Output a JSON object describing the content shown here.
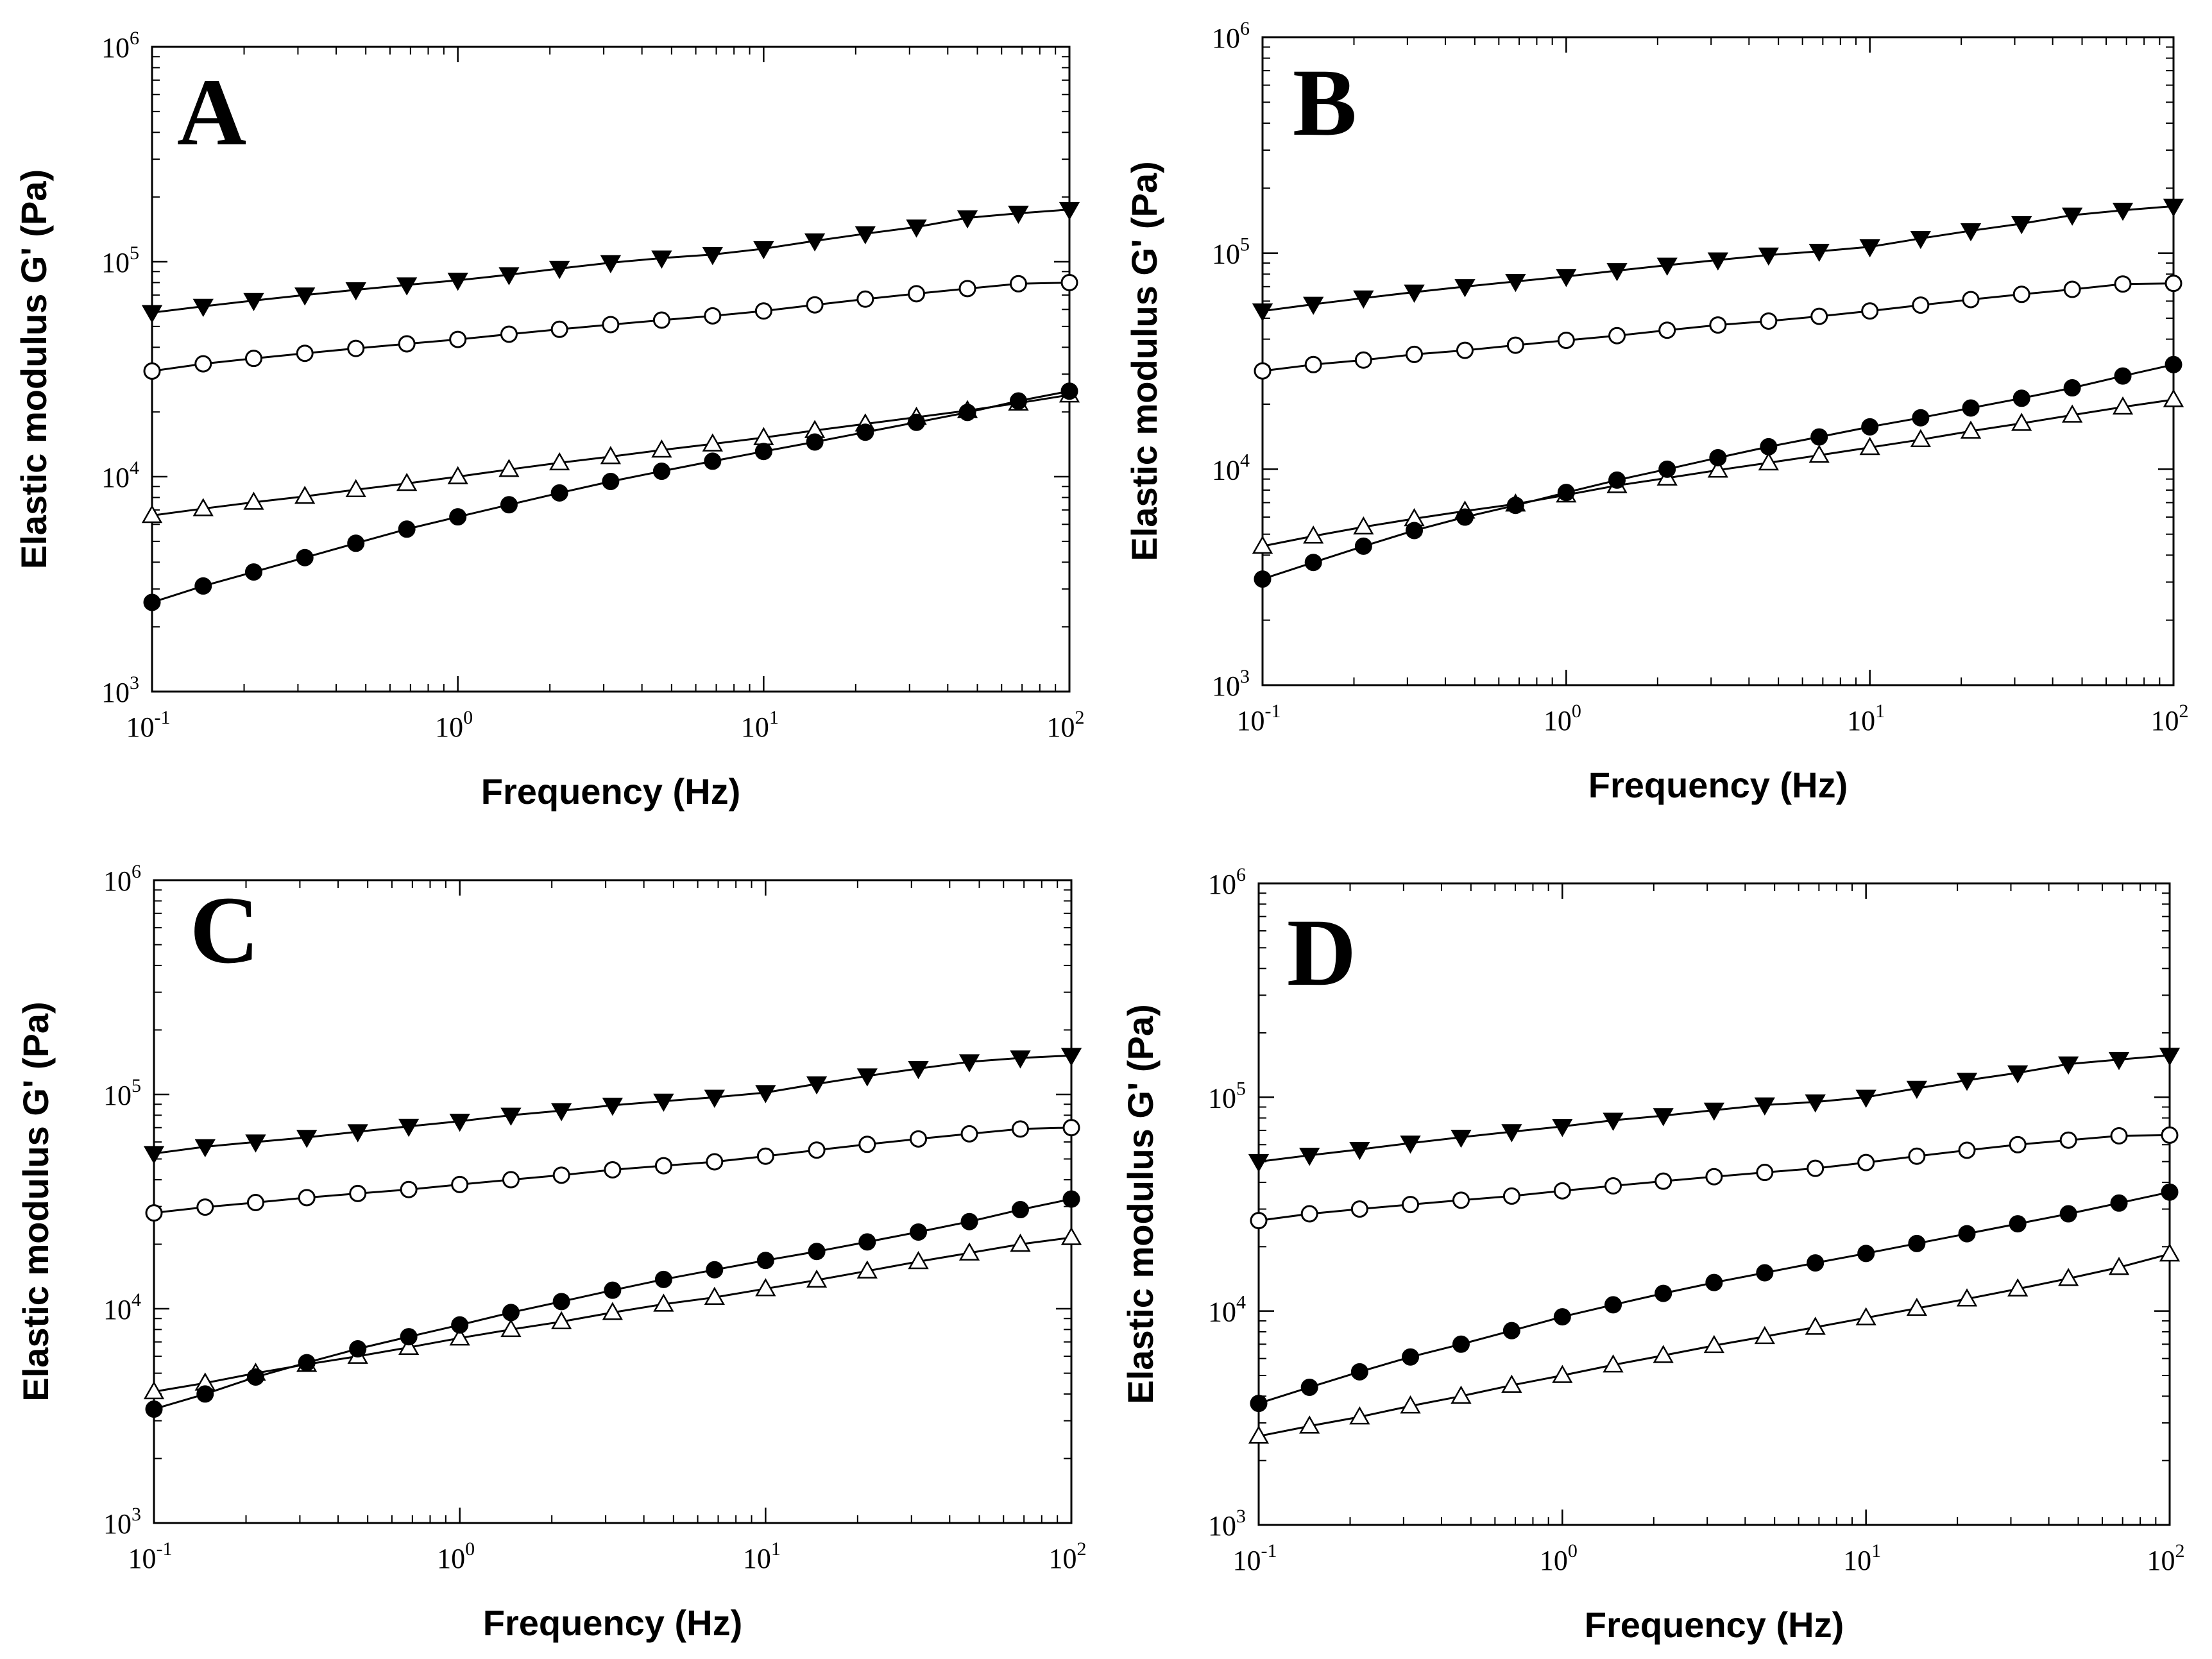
{
  "figure": {
    "marker_colors": {
      "filled": "#000000",
      "open": "#ffffff",
      "line": "#000000"
    }
  },
  "chart_data": [
    {
      "panel": "A",
      "type": "line",
      "xscale": "log",
      "yscale": "log",
      "xlabel": "Frequency (Hz)",
      "ylabel": "Elastic modulus G' (Pa)",
      "xlim": [
        0.1,
        100
      ],
      "ylim": [
        1000,
        1000000
      ],
      "xticks": [
        0.1,
        1,
        10,
        100
      ],
      "yticks": [
        1000,
        10000,
        100000,
        1000000
      ],
      "xtick_labels": [
        {
          "base": "10",
          "exp": "-1"
        },
        {
          "base": "10",
          "exp": "0"
        },
        {
          "base": "10",
          "exp": "1"
        },
        {
          "base": "10",
          "exp": "2"
        }
      ],
      "ytick_labels": [
        {
          "base": "10",
          "exp": "3"
        },
        {
          "base": "10",
          "exp": "4"
        },
        {
          "base": "10",
          "exp": "5"
        },
        {
          "base": "10",
          "exp": "6"
        }
      ],
      "x": [
        0.1,
        0.147,
        0.215,
        0.316,
        0.464,
        0.681,
        1.0,
        1.47,
        2.15,
        3.16,
        4.64,
        6.81,
        10.0,
        14.7,
        21.5,
        31.6,
        46.4,
        68.1,
        100
      ],
      "series": [
        {
          "name": "filled-down-triangle",
          "marker": "triangle-down",
          "fill": "filled",
          "values": [
            58000,
            62000,
            66000,
            70000,
            74000,
            78000,
            82000,
            87000,
            93000,
            99000,
            104000,
            108000,
            115000,
            125000,
            135000,
            145000,
            160000,
            168000,
            175000
          ]
        },
        {
          "name": "open-circle",
          "marker": "circle",
          "fill": "open",
          "values": [
            31000,
            33500,
            35500,
            37500,
            39500,
            41500,
            43500,
            46000,
            48500,
            51000,
            53500,
            56000,
            59000,
            63000,
            67000,
            71000,
            75000,
            79000,
            80000
          ]
        },
        {
          "name": "open-triangle",
          "marker": "triangle-up",
          "fill": "open",
          "values": [
            6600,
            7100,
            7600,
            8100,
            8700,
            9300,
            10000,
            10800,
            11600,
            12400,
            13300,
            14200,
            15200,
            16400,
            17600,
            18900,
            20300,
            22000,
            24000
          ]
        },
        {
          "name": "filled-circle",
          "marker": "circle",
          "fill": "filled",
          "values": [
            2600,
            3100,
            3600,
            4200,
            4900,
            5700,
            6500,
            7400,
            8400,
            9500,
            10600,
            11800,
            13100,
            14500,
            16100,
            17900,
            19900,
            22500,
            25000
          ]
        }
      ]
    },
    {
      "panel": "B",
      "type": "line",
      "xscale": "log",
      "yscale": "log",
      "xlabel": "Frequency (Hz)",
      "ylabel": "Elastic modulus G' (Pa)",
      "xlim": [
        0.1,
        100
      ],
      "ylim": [
        1000,
        1000000
      ],
      "xticks": [
        0.1,
        1,
        10,
        100
      ],
      "yticks": [
        1000,
        10000,
        100000,
        1000000
      ],
      "xtick_labels": [
        {
          "base": "10",
          "exp": "-1"
        },
        {
          "base": "10",
          "exp": "0"
        },
        {
          "base": "10",
          "exp": "1"
        },
        {
          "base": "10",
          "exp": "2"
        }
      ],
      "ytick_labels": [
        {
          "base": "10",
          "exp": "3"
        },
        {
          "base": "10",
          "exp": "4"
        },
        {
          "base": "10",
          "exp": "5"
        },
        {
          "base": "10",
          "exp": "6"
        }
      ],
      "x": [
        0.1,
        0.147,
        0.215,
        0.316,
        0.464,
        0.681,
        1.0,
        1.47,
        2.15,
        3.16,
        4.64,
        6.81,
        10.0,
        14.7,
        21.5,
        31.6,
        46.4,
        68.1,
        100
      ],
      "series": [
        {
          "name": "filled-down-triangle",
          "marker": "triangle-down",
          "fill": "filled",
          "values": [
            54000,
            58000,
            62000,
            66000,
            70000,
            74000,
            78000,
            83000,
            88000,
            93000,
            98000,
            102000,
            107000,
            117000,
            127000,
            137000,
            150000,
            158000,
            165000
          ]
        },
        {
          "name": "open-circle",
          "marker": "circle",
          "fill": "open",
          "values": [
            28500,
            30500,
            32000,
            34000,
            35500,
            37500,
            39500,
            41500,
            44000,
            46500,
            48500,
            51000,
            54000,
            57500,
            61000,
            64500,
            68000,
            72000,
            72500
          ]
        },
        {
          "name": "open-triangle",
          "marker": "triangle-up",
          "fill": "open",
          "values": [
            4400,
            4900,
            5400,
            5900,
            6400,
            6900,
            7600,
            8400,
            9100,
            9900,
            10700,
            11600,
            12600,
            13700,
            15000,
            16300,
            17800,
            19400,
            21000
          ]
        },
        {
          "name": "filled-circle",
          "marker": "circle",
          "fill": "filled",
          "values": [
            3100,
            3700,
            4400,
            5200,
            6000,
            6800,
            7800,
            8900,
            10000,
            11300,
            12700,
            14100,
            15700,
            17300,
            19200,
            21300,
            23800,
            27000,
            30500
          ]
        }
      ]
    },
    {
      "panel": "C",
      "type": "line",
      "xscale": "log",
      "yscale": "log",
      "xlabel": "Frequency (Hz)",
      "ylabel": "Elastic modulus G' (Pa)",
      "xlim": [
        0.1,
        100
      ],
      "ylim": [
        1000,
        1000000
      ],
      "xticks": [
        0.1,
        1,
        10,
        100
      ],
      "yticks": [
        1000,
        10000,
        100000,
        1000000
      ],
      "xtick_labels": [
        {
          "base": "10",
          "exp": "-1"
        },
        {
          "base": "10",
          "exp": "0"
        },
        {
          "base": "10",
          "exp": "1"
        },
        {
          "base": "10",
          "exp": "2"
        }
      ],
      "ytick_labels": [
        {
          "base": "10",
          "exp": "3"
        },
        {
          "base": "10",
          "exp": "4"
        },
        {
          "base": "10",
          "exp": "5"
        },
        {
          "base": "10",
          "exp": "6"
        }
      ],
      "x": [
        0.1,
        0.147,
        0.215,
        0.316,
        0.464,
        0.681,
        1.0,
        1.47,
        2.15,
        3.16,
        4.64,
        6.81,
        10.0,
        14.7,
        21.5,
        31.6,
        46.4,
        68.1,
        100
      ],
      "series": [
        {
          "name": "filled-down-triangle",
          "marker": "triangle-down",
          "fill": "filled",
          "values": [
            53000,
            57000,
            60000,
            63000,
            67000,
            71000,
            75000,
            80000,
            84000,
            89000,
            93000,
            97000,
            102000,
            112000,
            122000,
            132000,
            142000,
            148000,
            152000
          ]
        },
        {
          "name": "open-circle",
          "marker": "circle",
          "fill": "open",
          "values": [
            28000,
            29800,
            31300,
            33000,
            34500,
            36000,
            38000,
            40000,
            42000,
            44500,
            46500,
            48500,
            51500,
            55000,
            58500,
            62000,
            65500,
            69000,
            70000
          ]
        },
        {
          "name": "open-triangle",
          "marker": "triangle-up",
          "fill": "open",
          "values": [
            4100,
            4500,
            5000,
            5500,
            6000,
            6600,
            7300,
            8000,
            8700,
            9600,
            10500,
            11300,
            12400,
            13600,
            15000,
            16600,
            18200,
            20000,
            21500
          ]
        },
        {
          "name": "filled-circle",
          "marker": "circle",
          "fill": "filled",
          "values": [
            3400,
            4000,
            4800,
            5600,
            6500,
            7400,
            8400,
            9600,
            10800,
            12200,
            13700,
            15200,
            16800,
            18500,
            20500,
            22800,
            25500,
            29000,
            32500
          ]
        }
      ]
    },
    {
      "panel": "D",
      "type": "line",
      "xscale": "log",
      "yscale": "log",
      "xlabel": "Frequency (Hz)",
      "ylabel": "Elastic modulus G' (Pa)",
      "xlim": [
        0.1,
        100
      ],
      "ylim": [
        1000,
        1000000
      ],
      "xticks": [
        0.1,
        1,
        10,
        100
      ],
      "yticks": [
        1000,
        10000,
        100000,
        1000000
      ],
      "xtick_labels": [
        {
          "base": "10",
          "exp": "-1"
        },
        {
          "base": "10",
          "exp": "0"
        },
        {
          "base": "10",
          "exp": "1"
        },
        {
          "base": "10",
          "exp": "2"
        }
      ],
      "ytick_labels": [
        {
          "base": "10",
          "exp": "3"
        },
        {
          "base": "10",
          "exp": "4"
        },
        {
          "base": "10",
          "exp": "5"
        },
        {
          "base": "10",
          "exp": "6"
        }
      ],
      "x": [
        0.1,
        0.147,
        0.215,
        0.316,
        0.464,
        0.681,
        1.0,
        1.47,
        2.15,
        3.16,
        4.64,
        6.81,
        10.0,
        14.7,
        21.5,
        31.6,
        46.4,
        68.1,
        100
      ],
      "series": [
        {
          "name": "filled-down-triangle",
          "marker": "triangle-down",
          "fill": "filled",
          "values": [
            50000,
            53500,
            57000,
            61000,
            65000,
            69000,
            73000,
            78000,
            82000,
            87000,
            92000,
            95000,
            100000,
            110000,
            120000,
            130000,
            143000,
            150000,
            157000
          ]
        },
        {
          "name": "open-circle",
          "marker": "circle",
          "fill": "open",
          "values": [
            26500,
            28500,
            30000,
            31500,
            33000,
            34500,
            36500,
            38500,
            40500,
            42500,
            44500,
            46500,
            49500,
            53000,
            56500,
            60000,
            63000,
            66000,
            66500
          ]
        },
        {
          "name": "open-triangle",
          "marker": "triangle-up",
          "fill": "open",
          "values": [
            2600,
            2900,
            3200,
            3600,
            4000,
            4500,
            5000,
            5600,
            6200,
            6900,
            7600,
            8400,
            9300,
            10300,
            11400,
            12700,
            14200,
            16000,
            18500
          ]
        },
        {
          "name": "filled-circle",
          "marker": "circle",
          "fill": "filled",
          "values": [
            3700,
            4400,
            5200,
            6100,
            7000,
            8100,
            9400,
            10700,
            12100,
            13600,
            15100,
            16800,
            18600,
            20700,
            23000,
            25600,
            28500,
            32000,
            36000
          ]
        }
      ]
    }
  ]
}
